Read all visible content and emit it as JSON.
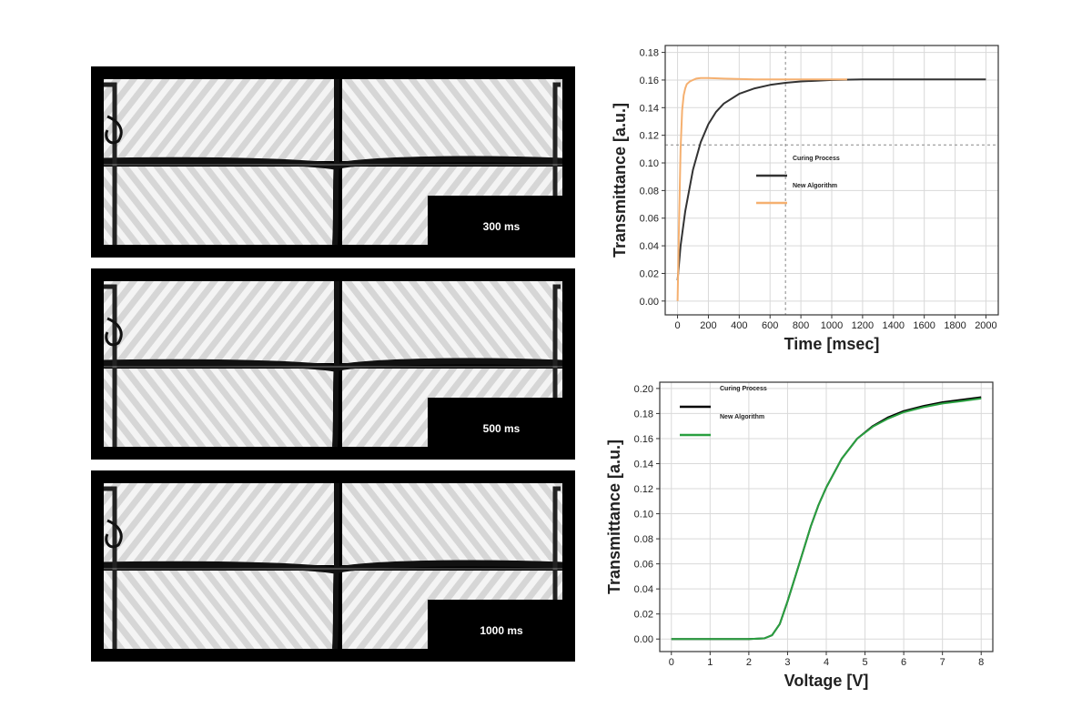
{
  "panels": [
    {
      "label": "300 ms"
    },
    {
      "label": "500 ms"
    },
    {
      "label": "1000 ms"
    }
  ],
  "chart_data": [
    {
      "type": "line",
      "xlabel": "Time [msec]",
      "ylabel": "Transmittance [a.u.]",
      "xlim": [
        -80,
        2080
      ],
      "ylim": [
        -0.01,
        0.185
      ],
      "xticks": [
        0,
        200,
        400,
        600,
        800,
        1000,
        1200,
        1400,
        1600,
        1800,
        2000
      ],
      "yticks": [
        0.0,
        0.02,
        0.04,
        0.06,
        0.08,
        0.1,
        0.12,
        0.14,
        0.16,
        0.18
      ],
      "grid": true,
      "legend": "center",
      "series": [
        {
          "name": "Curing Process",
          "color": "#333333",
          "x": [
            0,
            20,
            50,
            100,
            150,
            200,
            250,
            300,
            400,
            500,
            600,
            700,
            800,
            900,
            1000,
            1200,
            1500,
            2000
          ],
          "y": [
            0.015,
            0.04,
            0.065,
            0.095,
            0.115,
            0.128,
            0.137,
            0.143,
            0.15,
            0.154,
            0.1565,
            0.158,
            0.159,
            0.1595,
            0.16,
            0.1605,
            0.1605,
            0.1605
          ]
        },
        {
          "name": "New Algorithm",
          "color": "#f5b070",
          "x": [
            0,
            10,
            20,
            30,
            40,
            50,
            60,
            80,
            100,
            120,
            150,
            200,
            300,
            500,
            700,
            900,
            1100
          ],
          "y": [
            0.0,
            0.06,
            0.11,
            0.138,
            0.149,
            0.154,
            0.157,
            0.159,
            0.16,
            0.161,
            0.1615,
            0.1615,
            0.161,
            0.1605,
            0.1605,
            0.1605,
            0.1605
          ]
        }
      ],
      "crosshair": {
        "x": 700,
        "y": 0.113
      }
    },
    {
      "type": "line",
      "xlabel": "Voltage [V]",
      "ylabel": "Transmittance [a.u.]",
      "xlim": [
        -0.3,
        8.3
      ],
      "ylim": [
        -0.01,
        0.205
      ],
      "xticks": [
        0,
        1,
        2,
        3,
        4,
        5,
        6,
        7,
        8
      ],
      "yticks": [
        0.0,
        0.02,
        0.04,
        0.06,
        0.08,
        0.1,
        0.12,
        0.14,
        0.16,
        0.18,
        0.2
      ],
      "grid": true,
      "legend": "top-left",
      "series": [
        {
          "name": "Curing Process",
          "color": "#000000",
          "x": [
            0,
            1,
            2,
            2.4,
            2.6,
            2.8,
            3.0,
            3.2,
            3.4,
            3.6,
            3.8,
            4.0,
            4.4,
            4.8,
            5.2,
            5.6,
            6.0,
            6.5,
            7.0,
            7.5,
            8.0
          ],
          "y": [
            0.0,
            0.0,
            0.0,
            0.0005,
            0.003,
            0.012,
            0.03,
            0.05,
            0.07,
            0.09,
            0.107,
            0.121,
            0.144,
            0.16,
            0.17,
            0.177,
            0.182,
            0.186,
            0.189,
            0.191,
            0.193
          ]
        },
        {
          "name": "New Algorithm",
          "color": "#2aa040",
          "x": [
            0,
            1,
            2,
            2.4,
            2.6,
            2.8,
            3.0,
            3.2,
            3.4,
            3.6,
            3.8,
            4.0,
            4.4,
            4.8,
            5.2,
            5.6,
            6.0,
            6.5,
            7.0,
            7.5,
            8.0
          ],
          "y": [
            0.0,
            0.0,
            0.0,
            0.0005,
            0.003,
            0.012,
            0.03,
            0.05,
            0.07,
            0.09,
            0.107,
            0.121,
            0.144,
            0.16,
            0.1695,
            0.176,
            0.181,
            0.185,
            0.188,
            0.19,
            0.192
          ]
        }
      ]
    }
  ]
}
